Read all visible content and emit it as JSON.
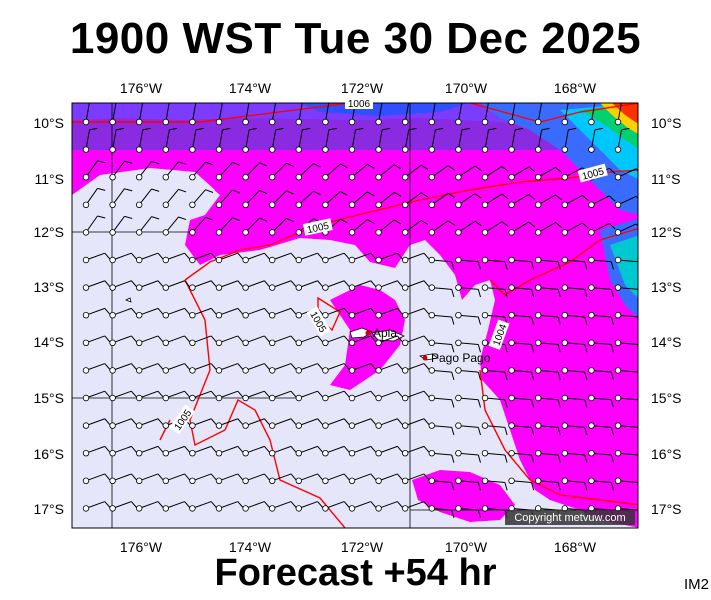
{
  "title": "1900 WST Tue 30 Dec 2025",
  "footer": "Forecast +54 hr",
  "image_code": "IM2",
  "copyright": "Copyright metvuw.com",
  "longitude_ticks": [
    "176°W",
    "174°W",
    "172°W",
    "170°W",
    "168°W"
  ],
  "latitude_ticks": [
    "10°S",
    "11°S",
    "12°S",
    "13°S",
    "14°S",
    "15°S",
    "16°S",
    "17°S"
  ],
  "isobar_labels": [
    "1006",
    "1005",
    "1005",
    "1005",
    "1004",
    "1005"
  ],
  "places": [
    {
      "name": "Apia",
      "lon": -171.75,
      "lat": -13.83
    },
    {
      "name": "Pago Pago",
      "lon": -170.7,
      "lat": -14.28
    }
  ],
  "colors": {
    "low": "#e6e6fa",
    "mid": "#ff00ff",
    "high": "#8a2be2",
    "deep": "#1e3cff",
    "isobar": "#ff0000"
  }
}
